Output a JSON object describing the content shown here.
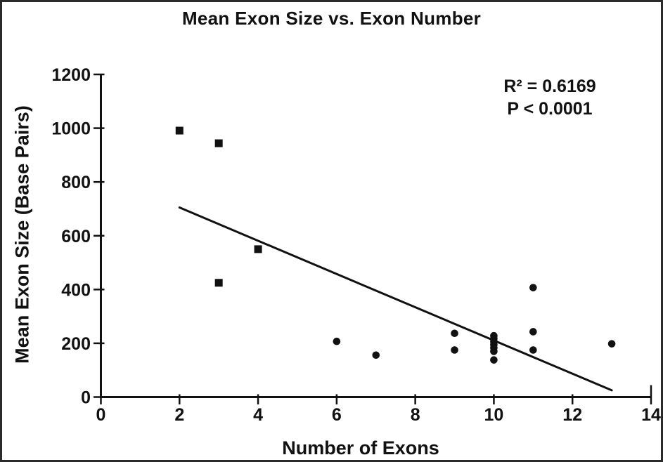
{
  "chart_data": {
    "type": "scatter",
    "title": "Mean Exon Size vs. Exon Number",
    "xlabel": "Number of Exons",
    "ylabel": "Mean Exon Size (Base Pairs)",
    "xlim": [
      0,
      14
    ],
    "ylim": [
      0,
      1200
    ],
    "xticks": [
      0,
      2,
      4,
      6,
      8,
      10,
      12,
      14
    ],
    "yticks": [
      0,
      200,
      400,
      600,
      800,
      1000,
      1200
    ],
    "grid": false,
    "legend": false,
    "annotations": [
      "R² = 0.6169",
      "P < 0.0001"
    ],
    "series": [
      {
        "name": "square-markers",
        "marker": "square",
        "points": [
          [
            2,
            991
          ],
          [
            3,
            944
          ],
          [
            3,
            425
          ],
          [
            4,
            550
          ]
        ]
      },
      {
        "name": "circle-markers",
        "marker": "circle",
        "points": [
          [
            6,
            207
          ],
          [
            7,
            156
          ],
          [
            9,
            237
          ],
          [
            9,
            175
          ],
          [
            10,
            228
          ],
          [
            10,
            217
          ],
          [
            10,
            206
          ],
          [
            10,
            195
          ],
          [
            10,
            183
          ],
          [
            10,
            170
          ],
          [
            10,
            138
          ],
          [
            11,
            407
          ],
          [
            11,
            243
          ],
          [
            11,
            175
          ],
          [
            13,
            198
          ]
        ]
      }
    ],
    "trendline": {
      "x1": 2,
      "y1": 705,
      "x2": 13,
      "y2": 25
    },
    "colors": {
      "marker": "#111111",
      "line": "#111111",
      "text": "#111111",
      "background": "#ffffff"
    }
  }
}
